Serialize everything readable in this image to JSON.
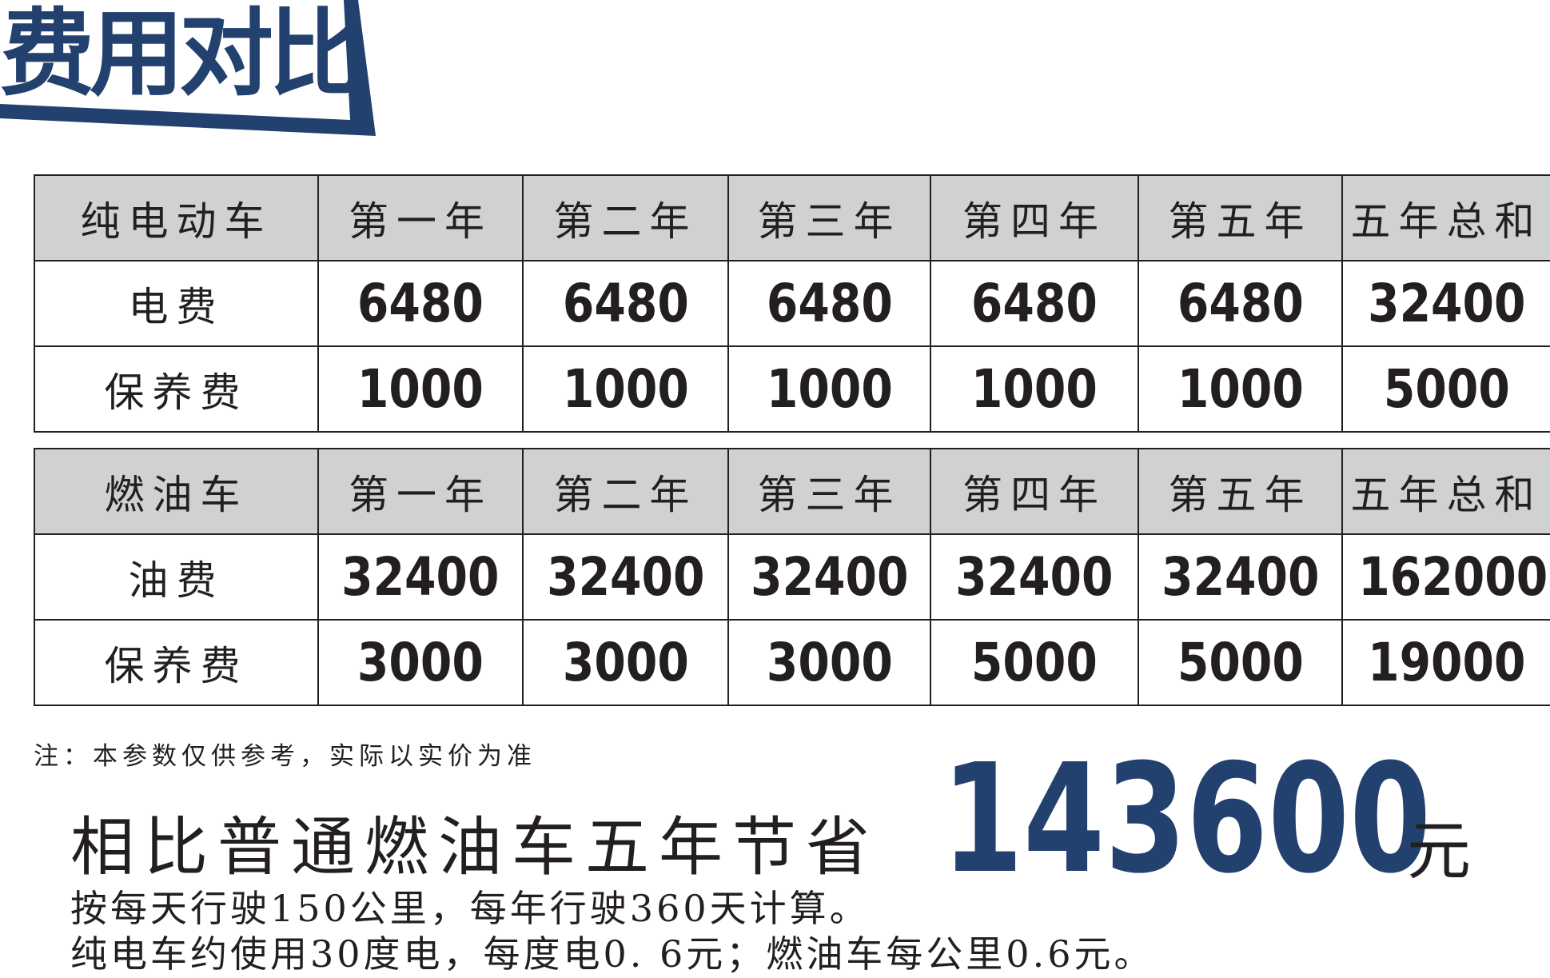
{
  "title": "费用对比",
  "colors": {
    "accent": "#22416f",
    "header_bg": "#cfd1d2",
    "text": "#231f20"
  },
  "ev_table": {
    "header": [
      "纯电动车",
      "第一年",
      "第二年",
      "第三年",
      "第四年",
      "第五年",
      "五年总和"
    ],
    "rows": [
      {
        "label": "电费",
        "values": [
          "6480",
          "6480",
          "6480",
          "6480",
          "6480",
          "32400"
        ]
      },
      {
        "label": "保养费",
        "values": [
          "1000",
          "1000",
          "1000",
          "1000",
          "1000",
          "5000"
        ]
      }
    ]
  },
  "fuel_table": {
    "header": [
      "燃油车",
      "第一年",
      "第二年",
      "第三年",
      "第四年",
      "第五年",
      "五年总和"
    ],
    "rows": [
      {
        "label": "油费",
        "values": [
          "32400",
          "32400",
          "32400",
          "32400",
          "32400",
          "162000"
        ]
      },
      {
        "label": "保养费",
        "values": [
          "3000",
          "3000",
          "3000",
          "5000",
          "5000",
          "19000"
        ]
      }
    ]
  },
  "note": "注：本参数仅供参考，实际以实价为准",
  "savings": {
    "label": "相比普通燃油车五年节省",
    "amount": "143600",
    "unit": "元"
  },
  "calc_lines": [
    "按每天行驶150公里，每年行驶360天计算。",
    "纯电车约使用30度电，每度电0. 6元；燃油车每公里0.6元。"
  ]
}
